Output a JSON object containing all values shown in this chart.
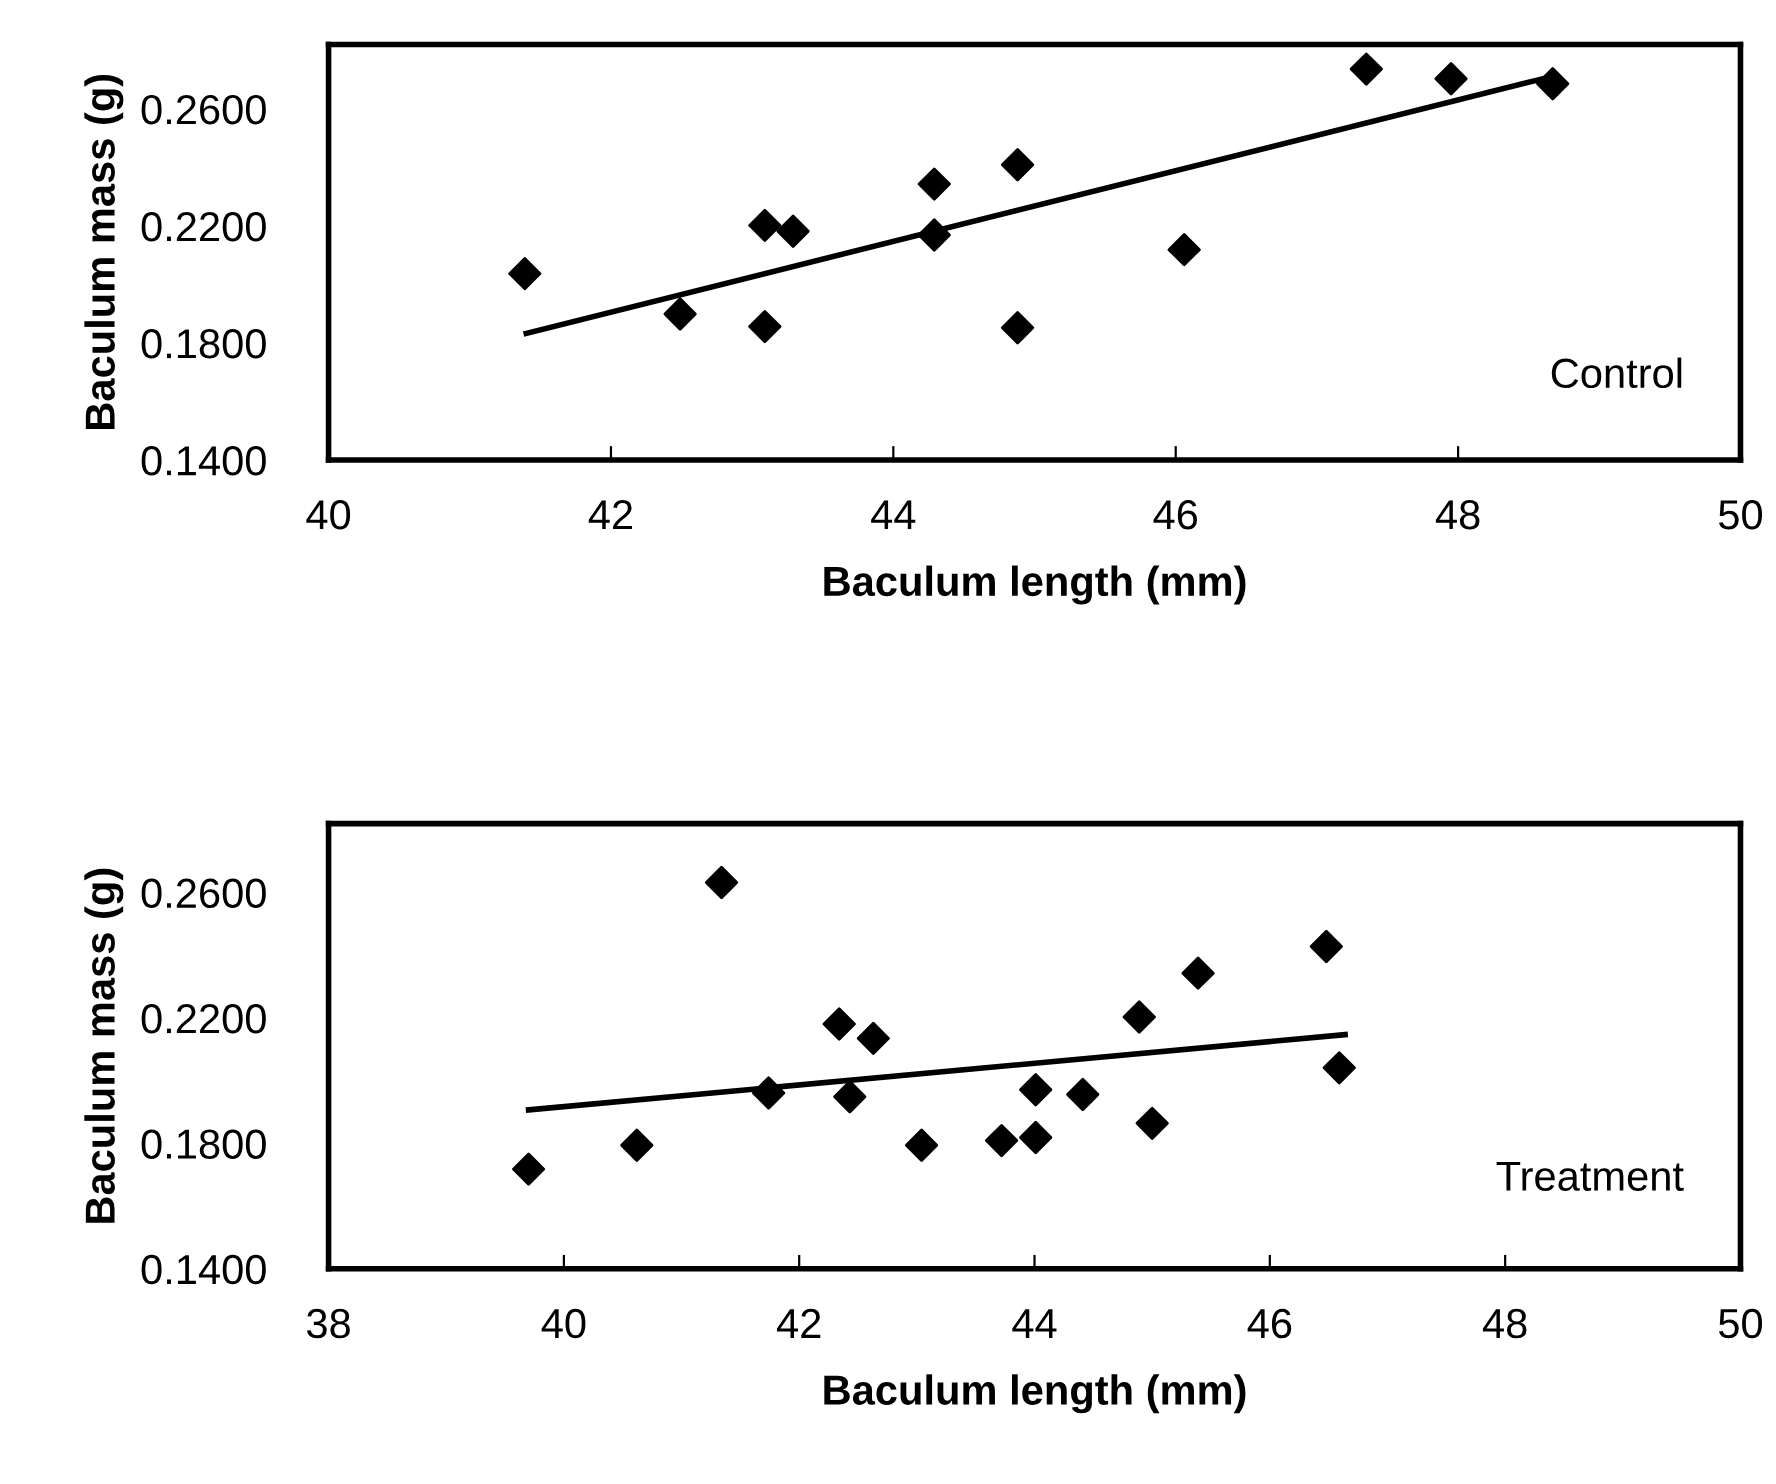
{
  "chart_data": [
    {
      "type": "scatter",
      "xlabel": "Baculum length (mm)",
      "ylabel": "Baculum mass (g)",
      "annotations": [
        "Control"
      ],
      "grid": false,
      "legend": false,
      "xlim": [
        40,
        50
      ],
      "xticks": [
        40,
        42,
        44,
        46,
        48,
        50
      ],
      "ylim": [
        0.14,
        0.282
      ],
      "yticks": [
        {
          "value": 0.14,
          "label": "0.1400"
        },
        {
          "value": 0.18,
          "label": "0.1800"
        },
        {
          "value": 0.22,
          "label": "0.2200"
        },
        {
          "value": 0.26,
          "label": "0.2600"
        }
      ],
      "series": [
        {
          "marker": "diamond",
          "color": "#000000",
          "x": [
            41.39,
            42.49,
            43.09,
            43.29,
            43.09,
            44.29,
            44.29,
            44.88,
            44.88,
            46.06,
            47.35,
            47.95,
            48.67
          ],
          "values": [
            0.2037,
            0.1899,
            0.2202,
            0.2182,
            0.1856,
            0.2343,
            0.2169,
            0.2409,
            0.1852,
            0.2119,
            0.2736,
            0.2703,
            0.2686
          ]
        },
        {
          "type": "line",
          "marker": "none",
          "color": "#000000",
          "x": [
            41.4,
            48.6
          ],
          "values": [
            0.1833,
            0.2703
          ]
        }
      ]
    },
    {
      "type": "scatter",
      "xlabel": "Baculum length (mm)",
      "ylabel": "Baculum mass (g)",
      "annotations": [
        "Treatment"
      ],
      "grid": false,
      "legend": false,
      "xlim": [
        38,
        50
      ],
      "xticks": [
        38,
        40,
        42,
        44,
        46,
        48,
        50
      ],
      "ylim": [
        0.14,
        0.282
      ],
      "yticks": [
        {
          "value": 0.14,
          "label": "0.1400"
        },
        {
          "value": 0.18,
          "label": "0.1800"
        },
        {
          "value": 0.22,
          "label": "0.2200"
        },
        {
          "value": 0.26,
          "label": "0.2600"
        }
      ],
      "series": [
        {
          "marker": "diamond",
          "color": "#000000",
          "x": [
            39.7,
            40.62,
            41.34,
            41.74,
            42.34,
            42.43,
            42.63,
            43.04,
            43.72,
            44.01,
            44.01,
            44.41,
            44.89,
            45.0,
            45.39,
            46.48,
            46.59
          ],
          "values": [
            0.1718,
            0.1794,
            0.2632,
            0.1961,
            0.2181,
            0.1949,
            0.2135,
            0.1794,
            0.1809,
            0.1819,
            0.1971,
            0.1956,
            0.2203,
            0.1864,
            0.2343,
            0.2428,
            0.2041
          ]
        },
        {
          "type": "line",
          "marker": "none",
          "color": "#000000",
          "x": [
            39.7,
            46.64
          ],
          "values": [
            0.1907,
            0.2147
          ]
        }
      ]
    }
  ]
}
